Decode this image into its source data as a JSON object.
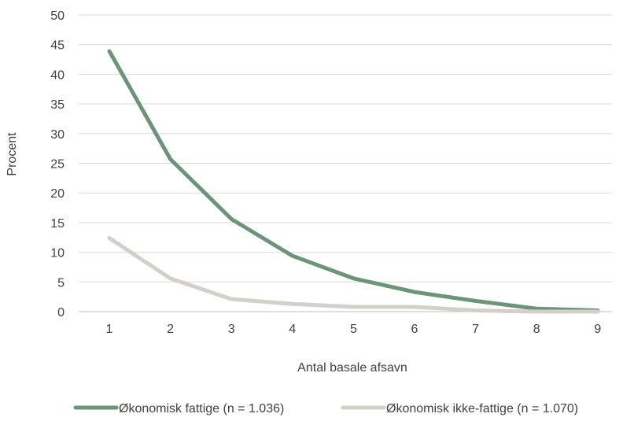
{
  "chart_data": {
    "type": "line",
    "title": "",
    "xlabel": "Antal basale afsavn",
    "ylabel": "Procent",
    "categories": [
      "1",
      "2",
      "3",
      "4",
      "5",
      "6",
      "7",
      "8",
      "9"
    ],
    "ylim": [
      0,
      50
    ],
    "yticks": [
      0,
      5,
      10,
      15,
      20,
      25,
      30,
      35,
      40,
      45,
      50
    ],
    "grid": true,
    "legend_position": "bottom",
    "series": [
      {
        "name": "Økonomisk fattige (n = 1.036)",
        "color": "#6b9479",
        "values": [
          43.9,
          25.7,
          15.6,
          9.4,
          5.6,
          3.3,
          1.8,
          0.5,
          0.2
        ]
      },
      {
        "name": "Økonomisk ikke-fattige (n = 1.070)",
        "color": "#d4cfc8",
        "values": [
          12.4,
          5.6,
          2.1,
          1.3,
          0.8,
          0.8,
          0.2,
          0.0,
          0.0
        ]
      }
    ]
  }
}
